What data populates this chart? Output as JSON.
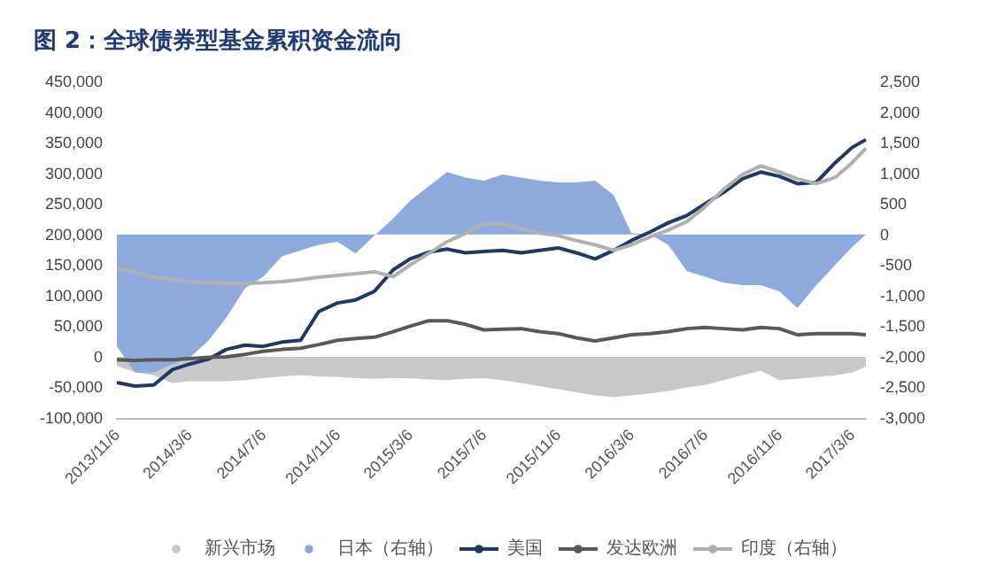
{
  "chart_data": {
    "type": "line",
    "title": "图 2：全球债券型基金累积资金流向",
    "legend": "bottom",
    "marker": "none",
    "grid": false,
    "x": [
      "2013-11-06",
      "2013-12-06",
      "2014-01-06",
      "2014-02-06",
      "2014-03-06",
      "2014-04-06",
      "2014-05-06",
      "2014-06-06",
      "2014-07-06",
      "2014-08-06",
      "2014-09-06",
      "2014-10-06",
      "2014-11-06",
      "2014-12-06",
      "2015-01-06",
      "2015-02-06",
      "2015-03-06",
      "2015-04-06",
      "2015-05-06",
      "2015-06-06",
      "2015-07-06",
      "2015-08-06",
      "2015-09-06",
      "2015-10-06",
      "2015-11-06",
      "2015-12-06",
      "2016-01-06",
      "2016-02-06",
      "2016-03-06",
      "2016-04-06",
      "2016-05-06",
      "2016-06-06",
      "2016-07-06",
      "2016-08-06",
      "2016-09-06",
      "2016-10-06",
      "2016-11-06",
      "2016-12-06",
      "2017-01-06",
      "2017-02-06",
      "2017-03-06",
      "2017-03-29"
    ],
    "xlim": [
      "2013-11-06",
      "2017-03-29"
    ],
    "xticks": [
      {
        "value": "2013-11-06",
        "label": "2013/11/6"
      },
      {
        "value": "2014-03-06",
        "label": "2014/3/6"
      },
      {
        "value": "2014-07-06",
        "label": "2014/7/6"
      },
      {
        "value": "2014-11-06",
        "label": "2014/11/6"
      },
      {
        "value": "2015-03-06",
        "label": "2015/3/6"
      },
      {
        "value": "2015-07-06",
        "label": "2015/7/6"
      },
      {
        "value": "2015-11-06",
        "label": "2015/11/6"
      },
      {
        "value": "2016-03-06",
        "label": "2016/3/6"
      },
      {
        "value": "2016-07-06",
        "label": "2016/7/6"
      },
      {
        "value": "2016-11-06",
        "label": "2016/11/6"
      },
      {
        "value": "2017-03-06",
        "label": "2017/3/6"
      }
    ],
    "ylim": [
      -100000,
      450000
    ],
    "yticks": [
      {
        "value": -100000,
        "label": "-100,000"
      },
      {
        "value": -50000,
        "label": "-50,000"
      },
      0,
      {
        "value": 50000,
        "label": "50,000"
      },
      {
        "value": 100000,
        "label": "100,000"
      },
      {
        "value": 150000,
        "label": "150,000"
      },
      {
        "value": 200000,
        "label": "200,000"
      },
      {
        "value": 250000,
        "label": "250,000"
      },
      {
        "value": 300000,
        "label": "300,000"
      },
      {
        "value": 350000,
        "label": "350,000"
      },
      {
        "value": 400000,
        "label": "400,000"
      },
      {
        "value": 450000,
        "label": "450,000"
      }
    ],
    "y2lim": [
      -3000,
      2500
    ],
    "y2ticks": [
      {
        "value": -3000,
        "label": "-3,000"
      },
      {
        "value": -2500,
        "label": "-2,500"
      },
      {
        "value": -2000,
        "label": "-2,000"
      },
      {
        "value": -1500,
        "label": "-1,500"
      },
      {
        "value": -1000,
        "label": "-1,000"
      },
      -500,
      0,
      500,
      {
        "value": 1000,
        "label": "1,000"
      },
      {
        "value": 1500,
        "label": "1,500"
      },
      {
        "value": 2000,
        "label": "2,000"
      },
      {
        "value": 2500,
        "label": "2,500"
      }
    ],
    "series": [
      {
        "name": "新兴市场",
        "type": "area",
        "color": "#c8c8c8",
        "values": [
          -15000,
          -25000,
          -30000,
          -43000,
          -40000,
          -40000,
          -40000,
          -38000,
          -35000,
          -32000,
          -30000,
          -32000,
          -33000,
          -35000,
          -36000,
          -35000,
          -35000,
          -37000,
          -38000,
          -36000,
          -35000,
          -38000,
          -43000,
          -48000,
          -53000,
          -58000,
          -63000,
          -66000,
          -63000,
          -60000,
          -56000,
          -50000,
          -46000,
          -38000,
          -30000,
          -23000,
          -38000,
          -36000,
          -33000,
          -30000,
          -26000,
          -16000
        ]
      },
      {
        "name": "日本（右轴）",
        "type": "area",
        "axis": "y2",
        "color": "#8eaadc",
        "values": [
          -1830,
          -2260,
          -2260,
          -2120,
          -2020,
          -1740,
          -1360,
          -880,
          -690,
          -360,
          -260,
          -170,
          -120,
          -310,
          -20,
          260,
          550,
          790,
          1020,
          930,
          880,
          980,
          930,
          880,
          850,
          850,
          880,
          640,
          20,
          0,
          -170,
          -600,
          -690,
          -790,
          -830,
          -830,
          -930,
          -1200,
          -830,
          -500,
          -210,
          0
        ]
      },
      {
        "name": "美国",
        "color": "#1f3864",
        "values": [
          -42000,
          -48000,
          -46000,
          -21000,
          -12000,
          -4000,
          12000,
          19000,
          17000,
          24000,
          27000,
          74000,
          88000,
          93000,
          107000,
          142000,
          160000,
          171000,
          176000,
          170000,
          172000,
          174000,
          170000,
          174000,
          178000,
          170000,
          160000,
          174000,
          190000,
          204000,
          219000,
          231000,
          250000,
          269000,
          291000,
          302000,
          295000,
          283000,
          285000,
          317000,
          342000,
          355000
        ]
      },
      {
        "name": "发达欧洲",
        "color": "#595959",
        "values": [
          -5000,
          -6000,
          -5000,
          -5000,
          -3000,
          -1000,
          0,
          4000,
          9000,
          12000,
          14000,
          20000,
          27000,
          30000,
          32000,
          41000,
          50000,
          59000,
          59000,
          53000,
          44000,
          45000,
          46000,
          41000,
          38000,
          31000,
          26000,
          31000,
          36000,
          38000,
          41000,
          46000,
          48000,
          46000,
          44000,
          48000,
          46000,
          36000,
          38000,
          38000,
          38000,
          36000
        ]
      },
      {
        "name": "印度（右轴）",
        "axis": "y2",
        "color": "#b0b0b0",
        "values": [
          -550,
          -620,
          -700,
          -740,
          -770,
          -790,
          -800,
          -800,
          -790,
          -770,
          -740,
          -700,
          -670,
          -640,
          -610,
          -690,
          -500,
          -310,
          -120,
          20,
          170,
          170,
          90,
          20,
          -20,
          -100,
          -170,
          -260,
          -170,
          -40,
          70,
          210,
          450,
          740,
          980,
          1120,
          1020,
          910,
          830,
          930,
          1170,
          1410
        ]
      }
    ]
  }
}
